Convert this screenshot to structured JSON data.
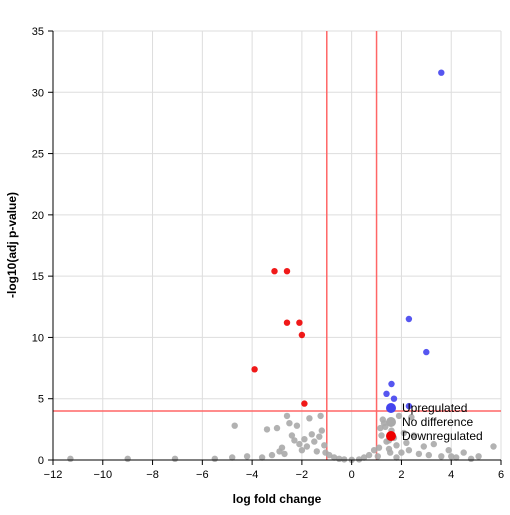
{
  "chart_data": {
    "type": "scatter",
    "xlabel": "log fold change",
    "ylabel": "-log10(adj p-value)",
    "xlim": [
      -12,
      6
    ],
    "ylim": [
      0,
      35
    ],
    "x_ticks": [
      "−12",
      "−10",
      "−8",
      "−6",
      "−4",
      "−2",
      "0",
      "2",
      "4",
      "6"
    ],
    "y_ticks": [
      "0",
      "5",
      "10",
      "15",
      "20",
      "25",
      "30",
      "35"
    ],
    "grid": true,
    "legend_position": "bottom-right",
    "thresholds": {
      "x": [
        -1,
        1
      ],
      "y": 4,
      "color": "#ff6666"
    },
    "series": [
      {
        "name": "Upregulated",
        "color": "#4444ee",
        "points": [
          [
            3.6,
            31.6
          ],
          [
            2.3,
            11.5
          ],
          [
            3.0,
            8.8
          ],
          [
            1.6,
            6.2
          ],
          [
            1.4,
            5.4
          ],
          [
            1.7,
            5.0
          ],
          [
            2.3,
            4.4
          ],
          [
            1.6,
            4.2
          ]
        ]
      },
      {
        "name": "No difference",
        "color": "#aaaaaa",
        "points": [
          [
            -11.3,
            0.1
          ],
          [
            -9.0,
            0.1
          ],
          [
            -7.1,
            0.1
          ],
          [
            -5.5,
            0.1
          ],
          [
            -4.8,
            0.2
          ],
          [
            -4.7,
            2.8
          ],
          [
            -4.2,
            0.3
          ],
          [
            -3.4,
            2.5
          ],
          [
            -3.0,
            2.6
          ],
          [
            -2.8,
            1.0
          ],
          [
            -2.6,
            3.6
          ],
          [
            -2.4,
            2.0
          ],
          [
            -2.3,
            1.6
          ],
          [
            -2.2,
            2.8
          ],
          [
            -2.1,
            1.3
          ],
          [
            -2.5,
            3.0
          ],
          [
            -2.0,
            0.8
          ],
          [
            -1.9,
            1.7
          ],
          [
            -1.8,
            1.1
          ],
          [
            -1.7,
            3.4
          ],
          [
            -1.6,
            2.1
          ],
          [
            -1.5,
            1.5
          ],
          [
            -1.4,
            0.7
          ],
          [
            -1.3,
            1.9
          ],
          [
            -1.2,
            2.4
          ],
          [
            -1.1,
            1.2
          ],
          [
            -1.05,
            0.6
          ],
          [
            -2.7,
            0.5
          ],
          [
            -3.2,
            0.4
          ],
          [
            -3.6,
            0.2
          ],
          [
            -1.25,
            3.6
          ],
          [
            -2.9,
            0.7
          ],
          [
            -0.9,
            0.4
          ],
          [
            -0.7,
            0.2
          ],
          [
            -0.5,
            0.1
          ],
          [
            -0.3,
            0.05
          ],
          [
            0.0,
            0.02
          ],
          [
            0.3,
            0.05
          ],
          [
            0.5,
            0.2
          ],
          [
            0.7,
            0.4
          ],
          [
            0.9,
            0.8
          ],
          [
            1.1,
            1.0
          ],
          [
            1.2,
            2.0
          ],
          [
            1.3,
            3.0
          ],
          [
            1.15,
            2.6
          ],
          [
            1.4,
            1.5
          ],
          [
            1.5,
            0.9
          ],
          [
            1.6,
            2.4
          ],
          [
            1.7,
            1.8
          ],
          [
            1.8,
            1.2
          ],
          [
            1.9,
            3.6
          ],
          [
            2.0,
            0.6
          ],
          [
            2.1,
            2.2
          ],
          [
            2.2,
            1.4
          ],
          [
            2.3,
            0.8
          ],
          [
            2.5,
            2.0
          ],
          [
            2.7,
            0.5
          ],
          [
            2.9,
            1.1
          ],
          [
            3.1,
            0.4
          ],
          [
            3.3,
            1.3
          ],
          [
            3.6,
            0.3
          ],
          [
            3.9,
            0.8
          ],
          [
            4.2,
            0.2
          ],
          [
            4.5,
            0.6
          ],
          [
            4.8,
            0.1
          ],
          [
            5.1,
            0.3
          ],
          [
            5.7,
            1.1
          ],
          [
            1.25,
            3.3
          ],
          [
            1.35,
            2.7
          ],
          [
            1.5,
            1.6
          ],
          [
            2.4,
            3.5
          ],
          [
            1.05,
            0.3
          ],
          [
            1.8,
            0.2
          ],
          [
            1.55,
            0.6
          ],
          [
            4.0,
            0.3
          ]
        ]
      },
      {
        "name": "Downregulated",
        "color": "#ee0000",
        "points": [
          [
            -3.1,
            15.4
          ],
          [
            -2.6,
            15.4
          ],
          [
            -2.6,
            11.2
          ],
          [
            -2.1,
            11.2
          ],
          [
            -2.0,
            10.2
          ],
          [
            -3.9,
            7.4
          ],
          [
            -1.9,
            4.6
          ]
        ]
      }
    ]
  }
}
